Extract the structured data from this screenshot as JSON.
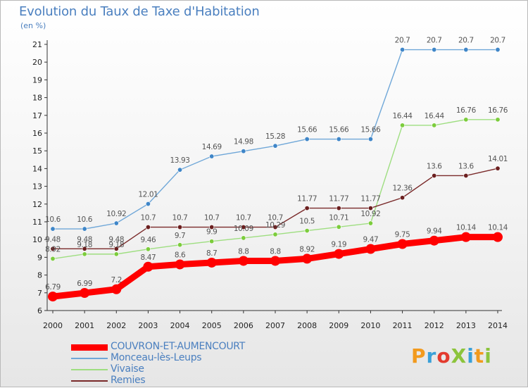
{
  "title": "Evolution du Taux de Taxe d'Habitation",
  "subtitle": "(en %)",
  "logo": {
    "text": "ProXiti",
    "colors": [
      "#f29a1d",
      "#3aa0d8",
      "#e33b2e",
      "#8cc43c",
      "#3aa0d8",
      "#f29a1d",
      "#8cc43c"
    ]
  },
  "chart_data": {
    "type": "line",
    "title": "Evolution du Taux de Taxe d'Habitation",
    "ylabel": "(en %)",
    "xlabel": "",
    "x": [
      "2000",
      "2001",
      "2002",
      "2003",
      "2004",
      "2005",
      "2006",
      "2007",
      "2008",
      "2009",
      "2010",
      "2011",
      "2012",
      "2013",
      "2014"
    ],
    "ylim": [
      6,
      21
    ],
    "yticks": [
      6,
      7,
      8,
      9,
      10,
      11,
      12,
      13,
      14,
      15,
      16,
      17,
      18,
      19,
      20,
      21
    ],
    "grid": false,
    "legend": "bottom-left",
    "series": [
      {
        "name": "COUVRON-ET-AUMENCOURT",
        "color": "#ff0000",
        "marker_color": "#ff0000",
        "emphasis": true,
        "values": [
          6.79,
          6.99,
          7.2,
          8.47,
          8.6,
          8.7,
          8.8,
          8.8,
          8.92,
          9.19,
          9.47,
          9.75,
          9.94,
          10.14,
          10.14
        ]
      },
      {
        "name": "Monceau-lès-Leups",
        "color": "#6fa7d8",
        "marker_color": "#3f86c8",
        "values": [
          10.6,
          10.6,
          10.92,
          12.01,
          13.93,
          14.69,
          14.98,
          15.28,
          15.66,
          15.66,
          15.66,
          20.7,
          20.7,
          20.7,
          20.7
        ]
      },
      {
        "name": "Vivaise",
        "color": "#9ede80",
        "marker_color": "#7ccc3c",
        "values": [
          8.92,
          9.18,
          9.18,
          9.46,
          9.7,
          9.9,
          10.09,
          10.29,
          10.5,
          10.71,
          10.92,
          16.44,
          16.44,
          16.76,
          16.76
        ]
      },
      {
        "name": "Remies",
        "color": "#7a2a2a",
        "marker_color": "#6b1f1f",
        "values": [
          9.48,
          9.48,
          9.48,
          10.7,
          10.7,
          10.7,
          10.7,
          10.7,
          11.77,
          11.77,
          11.77,
          12.36,
          13.6,
          13.6,
          14.01
        ]
      }
    ]
  }
}
